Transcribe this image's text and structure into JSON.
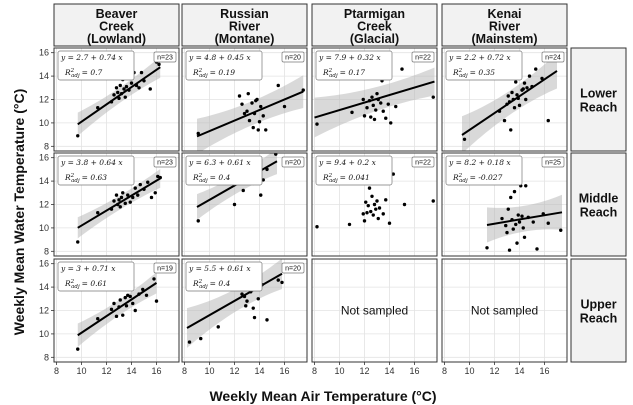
{
  "chart_data": {
    "type": "scatter",
    "xlabel": "Weekly Mean Air Temperature (°C)",
    "ylabel": "Weekly Mean Water Temperature (°C)",
    "xlim": [
      7.8,
      17.8
    ],
    "ylim": [
      7.6,
      16.4
    ],
    "x_ticks": [
      8,
      10,
      12,
      14,
      16
    ],
    "y_ticks": [
      8,
      10,
      12,
      14,
      16
    ],
    "grid": true,
    "columns": [
      {
        "lines": [
          "Beaver",
          "Creek",
          "(Lowland)"
        ]
      },
      {
        "lines": [
          "Russian",
          "River",
          "(Montane)"
        ]
      },
      {
        "lines": [
          "Ptarmigan",
          "Creek",
          "(Glacial)"
        ]
      },
      {
        "lines": [
          "Kenai",
          "River",
          "(Mainstem)"
        ]
      }
    ],
    "rows": [
      {
        "lines": [
          "Lower",
          "Reach"
        ]
      },
      {
        "lines": [
          "Middle",
          "Reach"
        ]
      },
      {
        "lines": [
          "Upper",
          "Reach"
        ]
      }
    ],
    "not_sampled_label": "Not sampled",
    "panels": [
      {
        "row": 0,
        "col": 0,
        "sampled": true,
        "equation": "y = 2.7 + 0.74 x",
        "r2": "= 0.7",
        "n": "n=23",
        "intercept": 2.7,
        "slope": 0.74,
        "fit_x": [
          9.7,
          16.3
        ],
        "band": [
          1.0,
          0.35,
          0.9
        ],
        "points": [
          [
            9.7,
            8.9
          ],
          [
            11.3,
            11.3
          ],
          [
            12.4,
            11.8
          ],
          [
            12.6,
            12.4
          ],
          [
            12.8,
            13.0
          ],
          [
            12.9,
            12.6
          ],
          [
            13.0,
            12.1
          ],
          [
            13.1,
            13.2
          ],
          [
            13.2,
            12.5
          ],
          [
            13.3,
            13.7
          ],
          [
            13.4,
            12.9
          ],
          [
            13.5,
            12.2
          ],
          [
            13.6,
            13.1
          ],
          [
            13.8,
            12.8
          ],
          [
            14.0,
            13.4
          ],
          [
            14.2,
            14.3
          ],
          [
            14.4,
            13.2
          ],
          [
            14.6,
            13.0
          ],
          [
            14.8,
            14.3
          ],
          [
            15.0,
            13.6
          ],
          [
            15.5,
            12.9
          ],
          [
            16.0,
            15.2
          ],
          [
            16.2,
            15.0
          ]
        ]
      },
      {
        "row": 0,
        "col": 1,
        "sampled": true,
        "equation": "y = 4.8 + 0.45 x",
        "r2": "= 0.19",
        "n": "n=20",
        "intercept": 4.8,
        "slope": 0.45,
        "fit_x": [
          9.0,
          17.5
        ],
        "band": [
          1.5,
          0.6,
          1.4
        ],
        "points": [
          [
            9.1,
            9.1
          ],
          [
            12.4,
            12.3
          ],
          [
            12.6,
            11.6
          ],
          [
            12.8,
            10.8
          ],
          [
            13.0,
            11.0
          ],
          [
            13.1,
            12.5
          ],
          [
            13.2,
            10.2
          ],
          [
            13.4,
            11.7
          ],
          [
            13.5,
            9.6
          ],
          [
            13.6,
            10.8
          ],
          [
            13.7,
            11.9
          ],
          [
            13.8,
            12.0
          ],
          [
            13.9,
            9.4
          ],
          [
            14.0,
            10.1
          ],
          [
            14.1,
            11.4
          ],
          [
            14.3,
            10.6
          ],
          [
            14.5,
            9.4
          ],
          [
            15.5,
            13.2
          ],
          [
            16.0,
            11.4
          ],
          [
            17.5,
            12.8
          ]
        ]
      },
      {
        "row": 0,
        "col": 2,
        "sampled": true,
        "equation": "y = 7.9 + 0.32 x",
        "r2": "= 0.17",
        "n": "n=22",
        "intercept": 7.9,
        "slope": 0.32,
        "fit_x": [
          8.0,
          17.6
        ],
        "band": [
          1.7,
          0.6,
          1.2
        ],
        "points": [
          [
            8.2,
            9.9
          ],
          [
            11.0,
            10.9
          ],
          [
            11.9,
            12.0
          ],
          [
            12.0,
            10.6
          ],
          [
            12.2,
            11.3
          ],
          [
            12.4,
            11.9
          ],
          [
            12.5,
            10.5
          ],
          [
            12.6,
            12.2
          ],
          [
            12.7,
            11.5
          ],
          [
            12.8,
            10.3
          ],
          [
            12.9,
            11.1
          ],
          [
            13.0,
            12.5
          ],
          [
            13.1,
            12.0
          ],
          [
            13.3,
            11.7
          ],
          [
            13.4,
            13.6
          ],
          [
            13.5,
            11.0
          ],
          [
            13.7,
            10.4
          ],
          [
            13.9,
            11.6
          ],
          [
            14.1,
            10.0
          ],
          [
            14.5,
            11.4
          ],
          [
            15.0,
            14.6
          ],
          [
            17.5,
            12.2
          ]
        ]
      },
      {
        "row": 0,
        "col": 3,
        "sampled": true,
        "equation": "y = 2.2 + 0.72 x",
        "r2": "= 0.35",
        "n": "n=24",
        "intercept": 2.2,
        "slope": 0.72,
        "fit_x": [
          9.4,
          17.0
        ],
        "band": [
          1.6,
          0.5,
          1.5
        ],
        "points": [
          [
            9.6,
            8.6
          ],
          [
            12.4,
            11.0
          ],
          [
            12.8,
            10.2
          ],
          [
            13.0,
            11.6
          ],
          [
            13.1,
            12.3
          ],
          [
            13.2,
            11.8
          ],
          [
            13.3,
            9.4
          ],
          [
            13.4,
            12.6
          ],
          [
            13.5,
            12.0
          ],
          [
            13.6,
            11.3
          ],
          [
            13.7,
            13.5
          ],
          [
            13.8,
            12.4
          ],
          [
            13.9,
            12.1
          ],
          [
            14.0,
            11.5
          ],
          [
            14.2,
            12.8
          ],
          [
            14.3,
            12.9
          ],
          [
            14.4,
            13.4
          ],
          [
            14.5,
            12.0
          ],
          [
            14.6,
            13.0
          ],
          [
            14.8,
            14.0
          ],
          [
            15.0,
            13.1
          ],
          [
            15.3,
            14.6
          ],
          [
            15.8,
            13.8
          ],
          [
            16.3,
            10.2
          ]
        ]
      },
      {
        "row": 1,
        "col": 0,
        "sampled": true,
        "equation": "y = 3.8 + 0.64 x",
        "r2": "= 0.63",
        "n": "n=23",
        "intercept": 3.8,
        "slope": 0.64,
        "fit_x": [
          9.7,
          16.3
        ],
        "band": [
          0.9,
          0.35,
          0.8
        ],
        "points": [
          [
            9.7,
            8.8
          ],
          [
            11.3,
            11.3
          ],
          [
            12.4,
            11.6
          ],
          [
            12.6,
            12.3
          ],
          [
            12.8,
            12.8
          ],
          [
            12.9,
            12.0
          ],
          [
            13.0,
            12.4
          ],
          [
            13.1,
            11.8
          ],
          [
            13.2,
            12.6
          ],
          [
            13.3,
            13.0
          ],
          [
            13.5,
            12.1
          ],
          [
            13.7,
            12.8
          ],
          [
            13.9,
            12.2
          ],
          [
            14.1,
            12.6
          ],
          [
            14.3,
            13.4
          ],
          [
            14.5,
            12.8
          ],
          [
            14.7,
            13.7
          ],
          [
            15.0,
            13.3
          ],
          [
            15.3,
            13.9
          ],
          [
            15.6,
            12.6
          ],
          [
            15.9,
            13.0
          ],
          [
            16.1,
            14.4
          ],
          [
            16.3,
            14.3
          ]
        ]
      },
      {
        "row": 1,
        "col": 1,
        "sampled": true,
        "equation": "y = 6.3 + 0.61 x",
        "r2": "= 0.4",
        "n": "n=20",
        "intercept": 6.3,
        "slope": 0.61,
        "fit_x": [
          9.0,
          15.4
        ],
        "band": [
          1.1,
          0.45,
          1.1
        ],
        "points": [
          [
            9.1,
            10.6
          ],
          [
            12.0,
            12.0
          ],
          [
            12.4,
            13.9
          ],
          [
            12.7,
            13.2
          ],
          [
            12.9,
            14.2
          ],
          [
            13.0,
            15.2
          ],
          [
            13.1,
            14.6
          ],
          [
            13.2,
            15.5
          ],
          [
            13.3,
            14.8
          ],
          [
            13.4,
            14.0
          ],
          [
            13.5,
            13.8
          ],
          [
            13.6,
            16.0
          ],
          [
            13.7,
            14.3
          ],
          [
            13.8,
            14.9
          ],
          [
            13.9,
            14.5
          ],
          [
            14.0,
            15.4
          ],
          [
            14.1,
            12.8
          ],
          [
            14.3,
            14.1
          ],
          [
            14.6,
            15.0
          ],
          [
            15.3,
            16.3
          ]
        ]
      },
      {
        "row": 1,
        "col": 2,
        "sampled": true,
        "equation": "y = 9.4 + 0.2 x",
        "r2": "= 0.041",
        "n": "n=22",
        "intercept": 9.4,
        "slope": 0.2,
        "fit_x": null,
        "band": null,
        "points": [
          [
            8.2,
            10.1
          ],
          [
            10.8,
            10.3
          ],
          [
            11.9,
            11.2
          ],
          [
            12.0,
            10.6
          ],
          [
            12.1,
            12.2
          ],
          [
            12.2,
            11.3
          ],
          [
            12.3,
            11.9
          ],
          [
            12.4,
            13.4
          ],
          [
            12.5,
            11.4
          ],
          [
            12.6,
            12.7
          ],
          [
            12.7,
            11.1
          ],
          [
            12.8,
            12.0
          ],
          [
            12.9,
            11.6
          ],
          [
            13.0,
            12.3
          ],
          [
            13.1,
            10.8
          ],
          [
            13.2,
            11.7
          ],
          [
            13.5,
            11.2
          ],
          [
            13.7,
            12.4
          ],
          [
            14.0,
            10.4
          ],
          [
            14.3,
            14.6
          ],
          [
            15.2,
            12.0
          ],
          [
            17.5,
            12.3
          ]
        ]
      },
      {
        "row": 1,
        "col": 3,
        "sampled": true,
        "equation": "y = 8.2 + 0.18 x",
        "r2": "= -0.027",
        "n": "n=25",
        "intercept": 8.2,
        "slope": 0.18,
        "fit_x": [
          11.4,
          17.4
        ],
        "band": [
          1.5,
          0.7,
          1.5
        ],
        "points": [
          [
            11.4,
            8.3
          ],
          [
            12.6,
            10.8
          ],
          [
            12.9,
            10.2
          ],
          [
            13.0,
            9.6
          ],
          [
            13.1,
            11.6
          ],
          [
            13.2,
            8.1
          ],
          [
            13.3,
            12.6
          ],
          [
            13.4,
            10.7
          ],
          [
            13.5,
            9.9
          ],
          [
            13.6,
            13.1
          ],
          [
            13.7,
            10.3
          ],
          [
            13.8,
            8.7
          ],
          [
            13.9,
            11.1
          ],
          [
            14.0,
            10.5
          ],
          [
            14.1,
            13.6
          ],
          [
            14.2,
            11.0
          ],
          [
            14.3,
            10.0
          ],
          [
            14.4,
            9.2
          ],
          [
            14.5,
            13.6
          ],
          [
            14.7,
            10.9
          ],
          [
            15.1,
            10.5
          ],
          [
            15.4,
            8.2
          ],
          [
            15.9,
            11.2
          ],
          [
            16.3,
            10.4
          ],
          [
            17.3,
            9.8
          ]
        ]
      },
      {
        "row": 2,
        "col": 0,
        "sampled": true,
        "equation": "y = 3 + 0.71 x",
        "r2": "= 0.61",
        "n": "n=19",
        "intercept": 3.0,
        "slope": 0.71,
        "fit_x": [
          9.7,
          16.0
        ],
        "band": [
          1.0,
          0.35,
          0.9
        ],
        "points": [
          [
            9.7,
            8.7
          ],
          [
            11.3,
            11.3
          ],
          [
            12.4,
            12.1
          ],
          [
            12.6,
            12.6
          ],
          [
            12.8,
            11.5
          ],
          [
            13.0,
            12.3
          ],
          [
            13.1,
            12.9
          ],
          [
            13.3,
            11.6
          ],
          [
            13.5,
            13.1
          ],
          [
            13.6,
            12.4
          ],
          [
            13.7,
            13.3
          ],
          [
            13.9,
            13.2
          ],
          [
            14.1,
            12.6
          ],
          [
            14.3,
            12.0
          ],
          [
            14.6,
            13.4
          ],
          [
            14.9,
            13.8
          ],
          [
            15.2,
            13.3
          ],
          [
            15.8,
            14.7
          ],
          [
            16.0,
            12.8
          ]
        ]
      },
      {
        "row": 2,
        "col": 1,
        "sampled": true,
        "equation": "y = 5.5 + 0.61 x",
        "r2": "= 0.4",
        "n": "n=20",
        "intercept": 5.5,
        "slope": 0.61,
        "fit_x": [
          8.2,
          15.8
        ],
        "band": [
          1.7,
          0.45,
          1.3
        ],
        "points": [
          [
            8.4,
            9.3
          ],
          [
            9.3,
            9.6
          ],
          [
            10.7,
            10.6
          ],
          [
            12.3,
            14.0
          ],
          [
            12.6,
            13.4
          ],
          [
            12.8,
            13.2
          ],
          [
            12.9,
            12.4
          ],
          [
            13.0,
            12.8
          ],
          [
            13.2,
            15.3
          ],
          [
            13.3,
            13.6
          ],
          [
            13.4,
            14.8
          ],
          [
            13.5,
            12.2
          ],
          [
            13.6,
            11.4
          ],
          [
            13.8,
            13.9
          ],
          [
            13.9,
            13.0
          ],
          [
            14.0,
            14.4
          ],
          [
            14.2,
            14.2
          ],
          [
            14.6,
            11.2
          ],
          [
            15.5,
            14.6
          ],
          [
            15.8,
            14.4
          ]
        ]
      },
      {
        "row": 2,
        "col": 2,
        "sampled": false
      },
      {
        "row": 2,
        "col": 3,
        "sampled": false
      }
    ]
  }
}
